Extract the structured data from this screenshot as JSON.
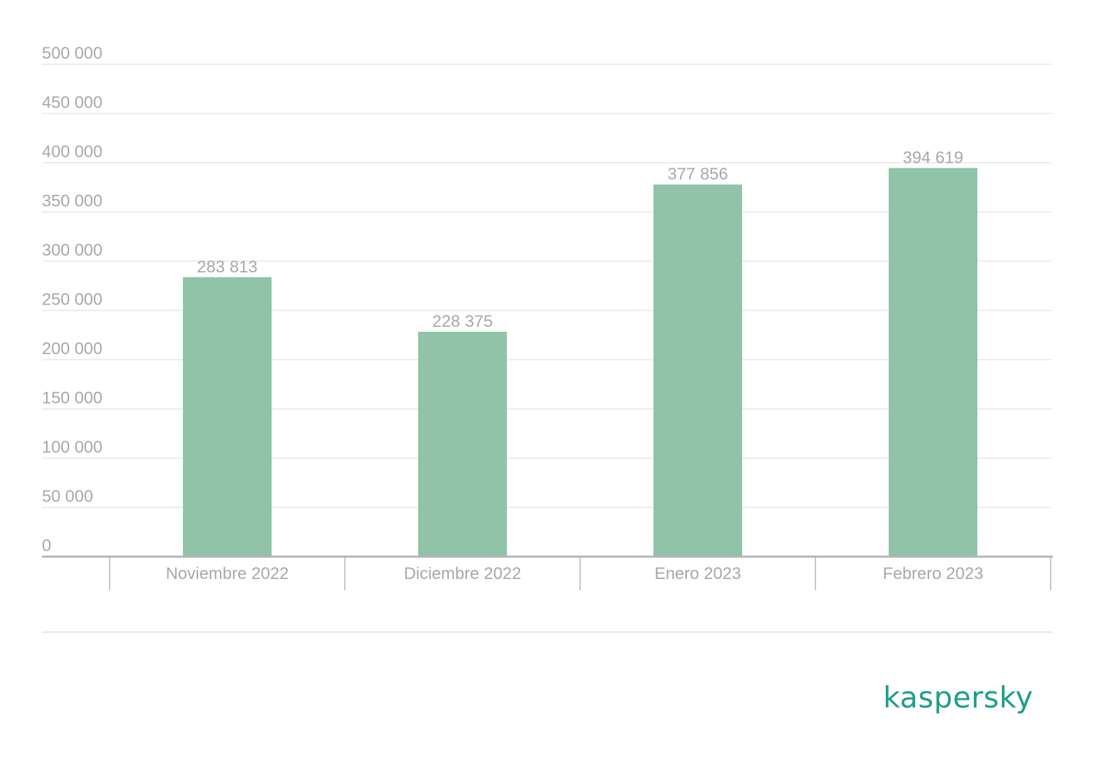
{
  "chart_data": {
    "type": "bar",
    "categories": [
      "Noviembre 2022",
      "Diciembre 2022",
      "Enero 2023",
      "Febrero 2023"
    ],
    "values": [
      283813,
      228375,
      377856,
      394619
    ],
    "value_labels": [
      "283 813",
      "228 375",
      "377 856",
      "394 619"
    ],
    "yticks": [
      0,
      50000,
      100000,
      150000,
      200000,
      250000,
      300000,
      350000,
      400000,
      450000,
      500000
    ],
    "ytick_labels": [
      "0",
      "50 000",
      "100 000",
      "150 000",
      "200 000",
      "250 000",
      "300 000",
      "350 000",
      "400 000",
      "450 000",
      "500 000"
    ],
    "ylim": [
      0,
      500000
    ],
    "grid": true,
    "legend": "none",
    "title": "",
    "xlabel": "",
    "ylabel": ""
  },
  "colors": {
    "bar": "#90c3a7",
    "text": "#a8a8a8",
    "grid": "#e6e6e6",
    "axis": "#b4b4b4",
    "brand": "#1d9e8a"
  },
  "brand": {
    "logo_text": "kaspersky"
  }
}
